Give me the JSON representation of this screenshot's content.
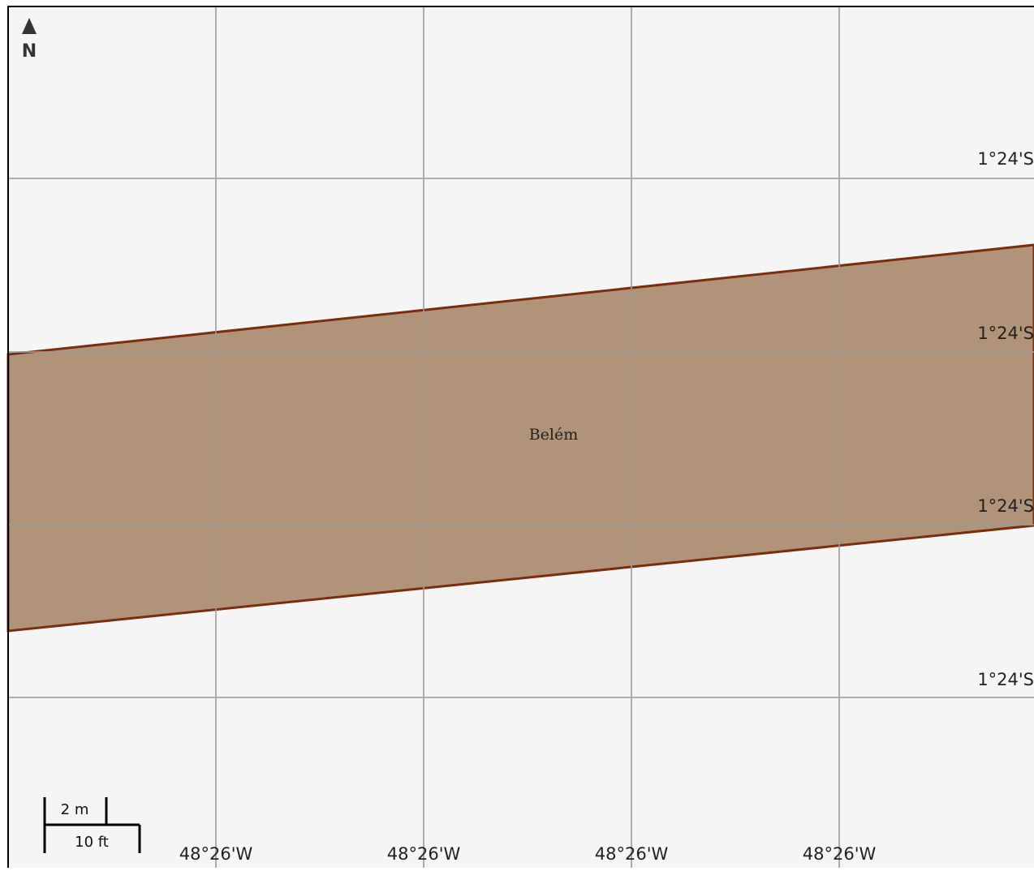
{
  "map": {
    "north_arrow": {
      "letter": "N",
      "icon": "north-arrow-icon"
    },
    "place": {
      "name": "Belém"
    },
    "colors": {
      "background": "#f5f5f5",
      "grid": "#9a9a9a",
      "area_fill": "#b09379",
      "area_stroke": "#7a2e0e",
      "frame": "#000000"
    },
    "latitude_labels": [
      "1°24'S",
      "1°24'S",
      "1°24'S",
      "1°24'S"
    ],
    "longitude_labels": [
      "48°26'W",
      "48°26'W",
      "48°26'W",
      "48°26'W"
    ],
    "scale_bar": {
      "metric": "2 m",
      "imperial": "10 ft"
    }
  }
}
